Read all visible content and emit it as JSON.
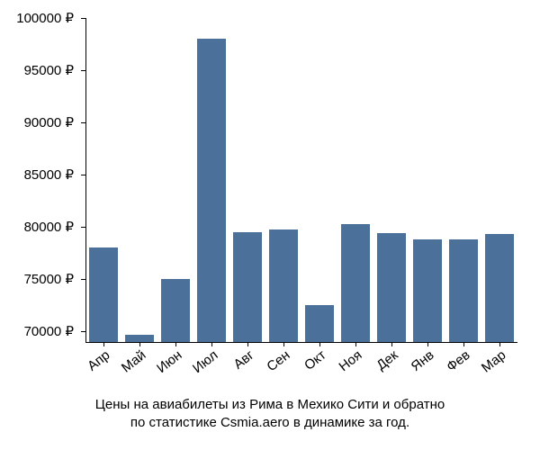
{
  "chart": {
    "type": "bar",
    "categories": [
      "Апр",
      "Май",
      "Июн",
      "Июл",
      "Авг",
      "Сен",
      "Окт",
      "Ноя",
      "Дек",
      "Янв",
      "Фев",
      "Мар"
    ],
    "values": [
      78000,
      69700,
      75000,
      98000,
      79500,
      79800,
      72500,
      80300,
      79400,
      78800,
      78800,
      79300
    ],
    "bar_color": "#4b719b",
    "background_color": "#ffffff",
    "ylim": [
      69000,
      100000
    ],
    "yticks": [
      70000,
      75000,
      80000,
      85000,
      90000,
      95000,
      100000
    ],
    "ytick_labels": [
      "70000 ₽",
      "75000 ₽",
      "80000 ₽",
      "85000 ₽",
      "90000 ₽",
      "95000 ₽",
      "100000 ₽"
    ],
    "label_fontsize": 15,
    "tick_fontsize": 15,
    "caption_fontsize": 15,
    "x_label_rotation_deg": -38,
    "bar_width": 0.78,
    "axis_color": "#000000",
    "text_color": "#000000",
    "caption_line1": "Цены на авиабилеты из Рима в Мехико Сити и обратно",
    "caption_line2": "по статистике Csmia.aero в динамике за год."
  }
}
